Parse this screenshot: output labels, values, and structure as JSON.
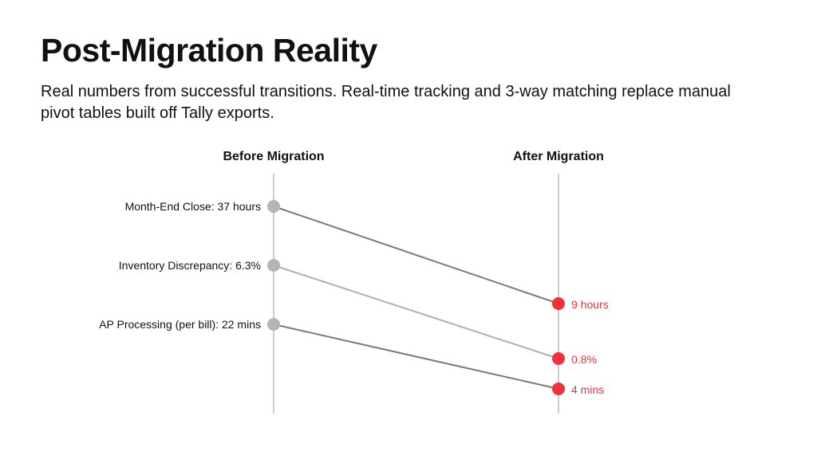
{
  "title": "Post-Migration Reality",
  "subtitle": "Real numbers from successful transitions. Real-time tracking and 3-way matching replace manual pivot tables built off Tally exports.",
  "chart_data": {
    "type": "slope",
    "columns": [
      "Before Migration",
      "After Migration"
    ],
    "items": [
      {
        "metric": "Month-End Close",
        "before": 37,
        "after": 9,
        "unit": "hours",
        "before_label": "Month-End Close: 37 hours",
        "after_label": "9 hours",
        "line_color": "#7a7a7a"
      },
      {
        "metric": "Inventory Discrepancy",
        "before": 6.3,
        "after": 0.8,
        "unit": "%",
        "before_label": "Inventory Discrepancy: 6.3%",
        "after_label": "0.8%",
        "line_color": "#b0b0b0"
      },
      {
        "metric": "AP Processing (per bill)",
        "before": 22,
        "after": 4,
        "unit": "mins",
        "before_label": "AP Processing (per bill): 22 mins",
        "after_label": "4 mins",
        "line_color": "#7a7a7a"
      }
    ],
    "colors": {
      "before_point": "#b5b5b5",
      "after_point": "#f0303a",
      "axis": "#cccccc",
      "after_text": "#f0303a"
    }
  }
}
